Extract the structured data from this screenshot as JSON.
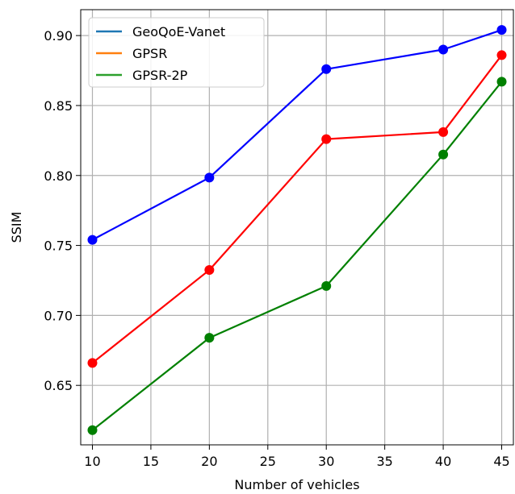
{
  "chart_data": {
    "type": "line",
    "title": "",
    "xlabel": "Number of vehicles",
    "ylabel": "SSIM",
    "x": [
      10,
      20,
      30,
      40,
      45
    ],
    "xlim": [
      9.0,
      46.0
    ],
    "ylim": [
      0.6075,
      0.9185
    ],
    "xticks": [
      10,
      15,
      20,
      25,
      30,
      35,
      40,
      45
    ],
    "xtick_labels": [
      "10",
      "15",
      "20",
      "25",
      "30",
      "35",
      "40",
      "45"
    ],
    "yticks": [
      0.65,
      0.7,
      0.75,
      0.8,
      0.85,
      0.9
    ],
    "ytick_labels": [
      "0.65",
      "0.70",
      "0.75",
      "0.80",
      "0.85",
      "0.90"
    ],
    "grid": true,
    "legend_position": "top-left",
    "series": [
      {
        "name": "GeoQoE-Vanet",
        "legend_color": "#1f77b4",
        "line_color": "#0000ff",
        "values": [
          0.754,
          0.7985,
          0.876,
          0.89,
          0.904
        ]
      },
      {
        "name": "GPSR",
        "legend_color": "#ff7f0e",
        "line_color": "#ff0000",
        "values": [
          0.666,
          0.7325,
          0.826,
          0.831,
          0.886
        ]
      },
      {
        "name": "GPSR-2P",
        "legend_color": "#2ca02c",
        "line_color": "#008000",
        "values": [
          0.618,
          0.684,
          0.721,
          0.815,
          0.867
        ]
      }
    ]
  }
}
